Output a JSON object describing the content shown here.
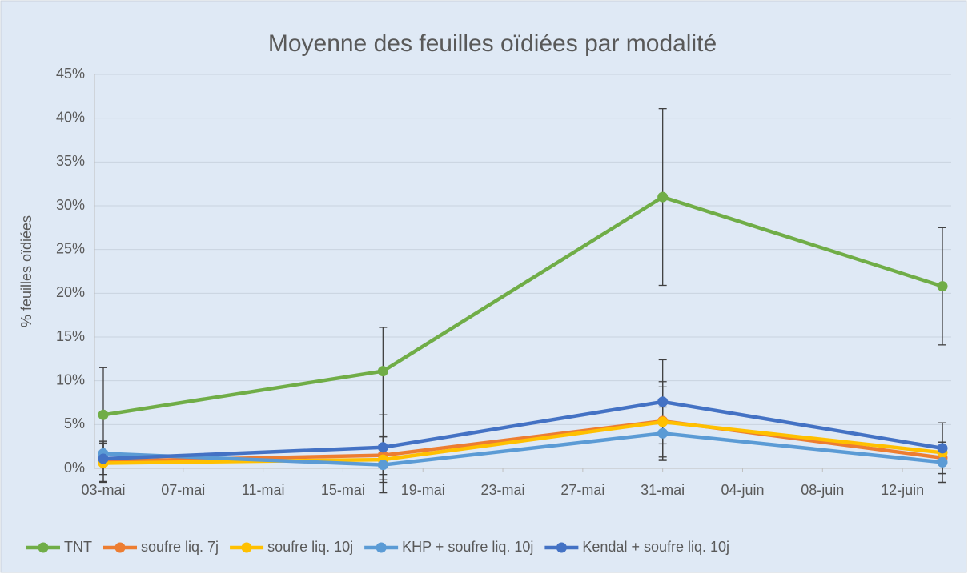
{
  "chart_data": {
    "type": "line",
    "title": "Moyenne des feuilles oïdiées par modalité",
    "y_label": "% feuilles oïdiées",
    "x": [
      "03-mai",
      "17-mai",
      "31-mai",
      "14-juin"
    ],
    "xlim": [
      "03-mai",
      "14-juin"
    ],
    "xticks": [
      "03-mai",
      "07-mai",
      "11-mai",
      "15-mai",
      "19-mai",
      "23-mai",
      "27-mai",
      "31-mai",
      "04-juin",
      "08-juin",
      "12-juin"
    ],
    "ylim": [
      0,
      45
    ],
    "yticks": [
      {
        "value": 0,
        "label": "0%"
      },
      {
        "value": 5,
        "label": "5%"
      },
      {
        "value": 10,
        "label": "10%"
      },
      {
        "value": 15,
        "label": "15%"
      },
      {
        "value": 20,
        "label": "20%"
      },
      {
        "value": 25,
        "label": "25%"
      },
      {
        "value": 30,
        "label": "30%"
      },
      {
        "value": 35,
        "label": "35%"
      },
      {
        "value": 40,
        "label": "40%"
      },
      {
        "value": 45,
        "label": "45%"
      }
    ],
    "grid": true,
    "legend": "bottom",
    "series": [
      {
        "name": "TNT",
        "color": "#70ad47",
        "values": [
          6.1,
          11.1,
          31.0,
          20.8
        ],
        "errors": [
          5.4,
          5.0,
          10.1,
          6.7
        ]
      },
      {
        "name": "soufre liq. 7j",
        "color": "#ed7d31",
        "values": [
          0.8,
          1.5,
          5.4,
          1.2
        ],
        "errors": [
          2.3,
          2.2,
          4.5,
          1.8
        ]
      },
      {
        "name": "soufre liq. 10j",
        "color": "#ffc000",
        "values": [
          0.6,
          1.0,
          5.3,
          1.8
        ],
        "errors": [
          2.2,
          2.6,
          4.0,
          3.4
        ]
      },
      {
        "name": "KHP + soufre liq. 10j",
        "color": "#5b9bd5",
        "values": [
          1.7,
          0.4,
          4.0,
          0.7
        ],
        "errors": [
          1.4,
          3.2,
          3.0,
          2.3
        ]
      },
      {
        "name": "Kendal + soufre liq. 10j",
        "color": "#4472c4",
        "values": [
          1.1,
          2.4,
          7.6,
          2.3
        ],
        "errors": [
          1.8,
          3.7,
          4.8,
          2.9
        ]
      }
    ]
  }
}
